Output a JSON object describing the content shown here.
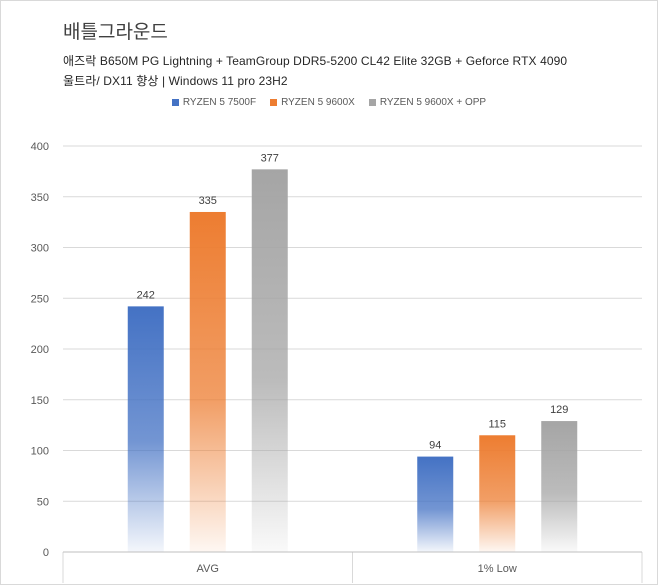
{
  "chart_data": {
    "type": "bar",
    "title": "배틀그라운드",
    "subtitle_lines": [
      "애즈락 B650M PG Lightning + TeamGroup DDR5-5200 CL42 Elite 32GB + Geforce RTX 4090",
      "울트라/ DX11 향상 | Windows 11 pro 23H2"
    ],
    "categories": [
      "AVG",
      "1% Low"
    ],
    "series": [
      {
        "name": "RYZEN 5 7500F",
        "values": [
          242,
          94
        ],
        "color": "#4472c4"
      },
      {
        "name": "RYZEN 5 9600X",
        "values": [
          335,
          115
        ],
        "color": "#ed7d31"
      },
      {
        "name": "RYZEN 5 9600X + OPP",
        "values": [
          377,
          129
        ],
        "color": "#a5a5a5"
      }
    ],
    "ylim": [
      0,
      400
    ],
    "yticks": [
      0,
      50,
      100,
      150,
      200,
      250,
      300,
      350,
      400
    ],
    "grid": true,
    "legend_position": "top"
  }
}
